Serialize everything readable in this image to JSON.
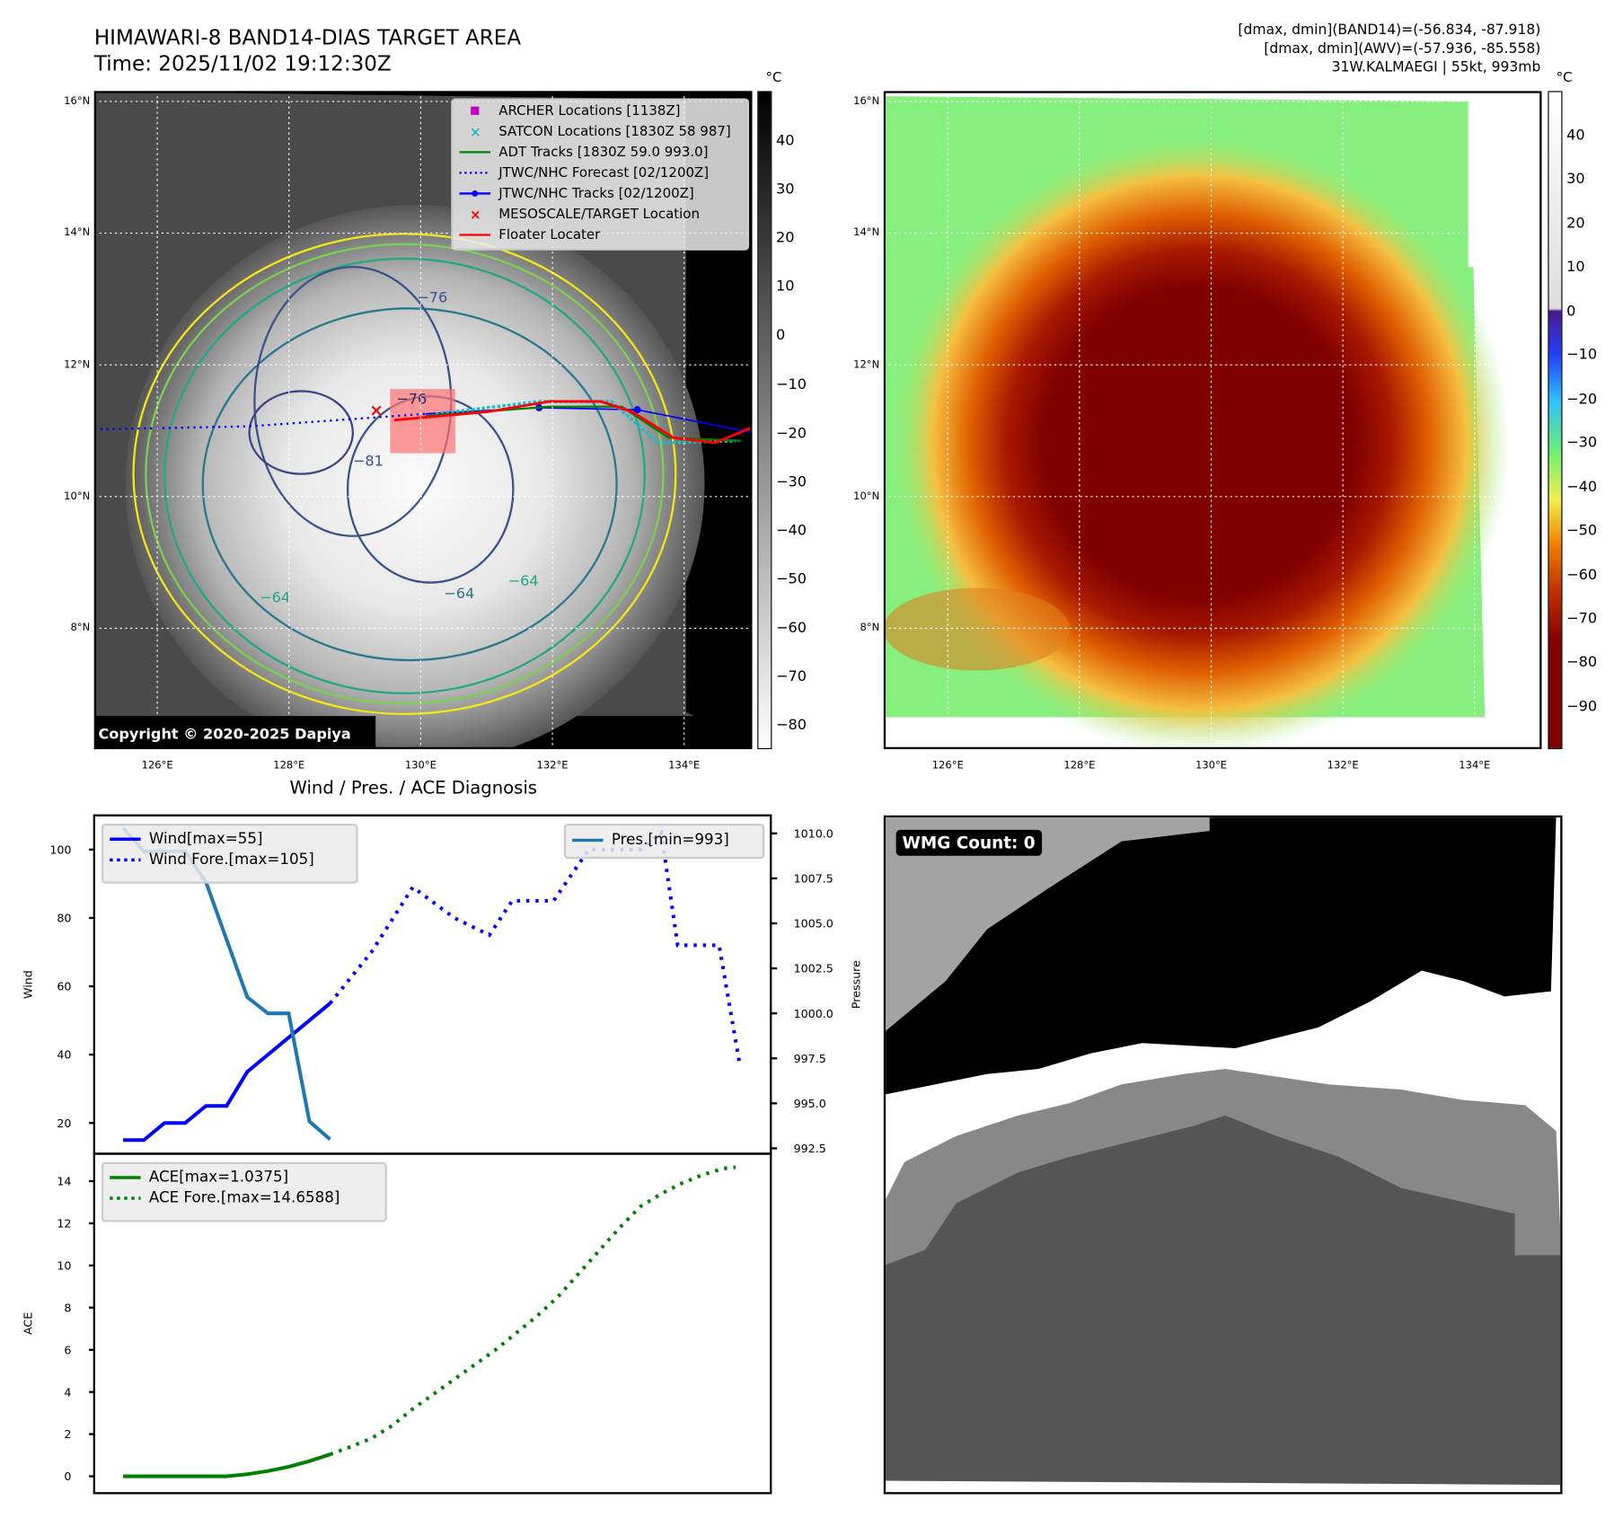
{
  "header": {
    "title": "HIMAWARI-8 BAND14-DIAS TARGET AREA",
    "time": "Time: 2025/11/02 19:12:30Z",
    "info": [
      "[dmax, dmin](BAND14)=(-56.834, -87.918)",
      "[dmax, dmin](AWV)=(-57.936, -85.558)",
      "31W.KALMAEGI | 55kt, 993mb"
    ]
  },
  "map_ir": {
    "lat_labels": [
      "16°N",
      "14°N",
      "12°N",
      "10°N",
      "8°N"
    ],
    "lon_labels": [
      "126°E",
      "128°E",
      "130°E",
      "132°E",
      "134°E"
    ],
    "colorbar": {
      "unit": "°C",
      "ticks": [
        "40",
        "30",
        "20",
        "10",
        "0",
        "−10",
        "−20",
        "−30",
        "−40",
        "−50",
        "−60",
        "−70",
        "−80"
      ]
    },
    "contour_labels": [
      "−76",
      "−76",
      "−81",
      "−64",
      "−64",
      "−64"
    ],
    "legend": [
      {
        "label": "ARCHER Locations [1138Z]",
        "color": "#c000c0",
        "symbol": "square"
      },
      {
        "label": "SATCON Locations [1830Z 58 987]",
        "color": "#17becf",
        "symbol": "x"
      },
      {
        "label": "ADT Tracks [1830Z 59.0 993.0]",
        "color": "#008000",
        "symbol": "line"
      },
      {
        "label": "JTWC/NHC Forecast [02/1200Z]",
        "color": "#0000ff",
        "symbol": "dotted"
      },
      {
        "label": "JTWC/NHC Tracks [02/1200Z]",
        "color": "#0000ff",
        "symbol": "line-dot"
      },
      {
        "label": "MESOSCALE/TARGET Location",
        "color": "#ff0000",
        "symbol": "x"
      },
      {
        "label": "Floater Locater",
        "color": "#ff0000",
        "symbol": "line"
      }
    ],
    "copyright": "Copyright © 2020-2025 Dapiya"
  },
  "map_awv": {
    "lat_labels": [
      "16°N",
      "14°N",
      "12°N",
      "10°N",
      "8°N"
    ],
    "lon_labels": [
      "126°E",
      "128°E",
      "130°E",
      "132°E",
      "134°E"
    ],
    "colorbar": {
      "unit": "°C",
      "ticks": [
        "40",
        "30",
        "20",
        "10",
        "0",
        "−10",
        "−20",
        "−30",
        "−40",
        "−50",
        "−60",
        "−70",
        "−80",
        "−90"
      ]
    }
  },
  "chart_data": [
    {
      "type": "line",
      "title": "Wind / Pres. / ACE Diagnosis",
      "ylabel": "Wind",
      "ylabel_right": "Pressure",
      "ylim": [
        11,
        110
      ],
      "ylim_right": [
        992.2,
        1011
      ],
      "xlim": [
        -1.4,
        31.3
      ],
      "yticks": [
        "20",
        "40",
        "60",
        "80",
        "100"
      ],
      "yticks_right": [
        "992.5",
        "995.0",
        "997.5",
        "1000.0",
        "1002.5",
        "1005.0",
        "1007.5",
        "1010.0"
      ],
      "series": [
        {
          "name": "Wind[max=55]",
          "axis": "left",
          "color": "#0000ff",
          "style": "solid",
          "points": [
            [
              0,
              15
            ],
            [
              1,
              15
            ],
            [
              2,
              20
            ],
            [
              3,
              20
            ],
            [
              4,
              25
            ],
            [
              5,
              25
            ],
            [
              6,
              35
            ],
            [
              7,
              40
            ],
            [
              8,
              45
            ],
            [
              9,
              50
            ],
            [
              10,
              55
            ]
          ]
        },
        {
          "name": "Wind Fore.[max=105]",
          "axis": "left",
          "color": "#0000ff",
          "style": "dotted",
          "points": [
            [
              10,
              55
            ],
            [
              12,
              70
            ],
            [
              14,
              89
            ],
            [
              16,
              80
            ],
            [
              17.7,
              75
            ],
            [
              18.8,
              85
            ],
            [
              20.8,
              85
            ],
            [
              22.5,
              100
            ],
            [
              25,
              100
            ],
            [
              26,
              105
            ],
            [
              26.8,
              72
            ],
            [
              28.8,
              72
            ],
            [
              29.8,
              37
            ]
          ]
        },
        {
          "name": "Pres.[min=993]",
          "axis": "right",
          "color": "#1f77b4",
          "style": "solid",
          "points": [
            [
              0,
              1010.3
            ],
            [
              1,
              1009
            ],
            [
              3,
              1009
            ],
            [
              4,
              1007.3
            ],
            [
              6,
              1000.9
            ],
            [
              7,
              1000
            ],
            [
              8,
              1000
            ],
            [
              9,
              994
            ],
            [
              10,
              993
            ]
          ]
        }
      ]
    },
    {
      "type": "line",
      "ylabel": "ACE",
      "ylim": [
        -0.8,
        15.3
      ],
      "xlim": [
        -1.4,
        31.3
      ],
      "yticks": [
        "0",
        "2",
        "4",
        "6",
        "8",
        "10",
        "12",
        "14"
      ],
      "series": [
        {
          "name": "ACE[max=1.0375]",
          "color": "#008000",
          "style": "solid",
          "points": [
            [
              0,
              0
            ],
            [
              5,
              0
            ],
            [
              6,
              0.1
            ],
            [
              7,
              0.25
            ],
            [
              8,
              0.45
            ],
            [
              9,
              0.72
            ],
            [
              10,
              1.04
            ]
          ]
        },
        {
          "name": "ACE Fore.[max=14.6588]",
          "color": "#008000",
          "style": "dotted",
          "points": [
            [
              10,
              1.04
            ],
            [
              11,
              1.4
            ],
            [
              12,
              1.8
            ],
            [
              13,
              2.4
            ],
            [
              14,
              3.2
            ],
            [
              15,
              3.9
            ],
            [
              16,
              4.6
            ],
            [
              17,
              5.3
            ],
            [
              18,
              6.0
            ],
            [
              19,
              6.8
            ],
            [
              20,
              7.6
            ],
            [
              21,
              8.5
            ],
            [
              22,
              9.6
            ],
            [
              23,
              10.7
            ],
            [
              24,
              11.8
            ],
            [
              25,
              12.8
            ],
            [
              26,
              13.4
            ],
            [
              27,
              13.9
            ],
            [
              28,
              14.3
            ],
            [
              29,
              14.6
            ],
            [
              29.6,
              14.66
            ]
          ]
        }
      ]
    }
  ],
  "wmg": {
    "label": "WMG Count: 0"
  }
}
